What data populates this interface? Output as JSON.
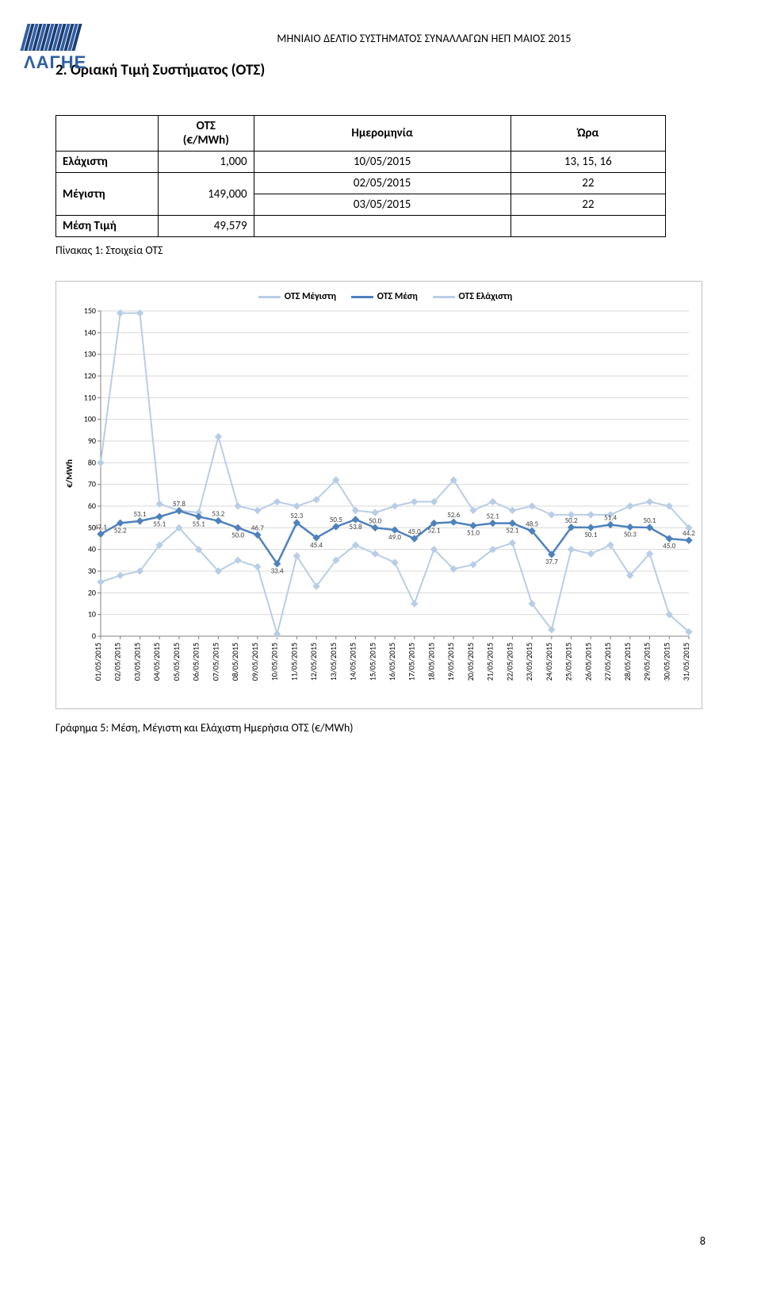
{
  "logo_text": "ΛΑΓΗΕ",
  "doc_header": "ΜΗΝΙΑΙΟ ΔΕΛΤΙΟ ΣΥΣΤΗΜΑΤΟΣ ΣΥΝΑΛΛΑΓΩΝ ΗΕΠ ΜΑΙΟΣ 2015",
  "section_title": "2.  Οριακή Τιμή Συστήματος (ΟΤΣ)",
  "page_number": "8",
  "table": {
    "headers": {
      "c1": "",
      "c2": "ΟΤΣ\n(€/MWh)",
      "c3": "Ημερομηνία",
      "c4": "Ώρα"
    },
    "row_min": {
      "label": "Ελάχιστη",
      "value": "1,000",
      "date": "10/05/2015",
      "hour": "13, 15, 16"
    },
    "row_max1": {
      "label": "Μέγιστη",
      "value": "149,000",
      "date": "02/05/2015",
      "hour": "22"
    },
    "row_max2": {
      "date": "03/05/2015",
      "hour": "22"
    },
    "row_avg": {
      "label": "Μέση Τιμή",
      "value": "49,579",
      "date": "",
      "hour": ""
    },
    "caption": "Πίνακας 1: Στοιχεία ΟΤΣ"
  },
  "chart": {
    "type": "line",
    "title": "",
    "ylabel": "€/MWh",
    "ylim": [
      0,
      150
    ],
    "ytick_step": 10,
    "background_color": "#ffffff",
    "grid_color": "#d9d9d9",
    "axis_color": "#808080",
    "tick_font_size": 10,
    "categories": [
      "01/05/2015",
      "02/05/2015",
      "03/05/2015",
      "04/05/2015",
      "05/05/2015",
      "06/05/2015",
      "07/05/2015",
      "08/05/2015",
      "09/05/2015",
      "10/05/2015",
      "11/05/2015",
      "12/05/2015",
      "13/05/2015",
      "14/05/2015",
      "15/05/2015",
      "16/05/2015",
      "17/05/2015",
      "18/05/2015",
      "19/05/2015",
      "20/05/2015",
      "21/05/2015",
      "22/05/2015",
      "23/05/2015",
      "24/05/2015",
      "25/05/2015",
      "26/05/2015",
      "27/05/2015",
      "28/05/2015",
      "29/05/2015",
      "30/05/2015",
      "31/05/2015"
    ],
    "legend_items": [
      "ΟΤΣ Μέγιστη",
      "ΟΤΣ Μέση",
      "ΟΤΣ Ελάχιστη"
    ],
    "series": {
      "max": {
        "color": "#b9cde5",
        "width": 2,
        "marker": "diamond",
        "data": [
          80,
          149,
          149,
          61,
          58,
          57,
          92,
          60,
          58,
          62,
          60,
          63,
          72,
          58,
          57,
          60,
          62,
          62,
          72,
          58,
          62,
          58,
          60,
          56,
          56,
          56,
          56,
          60,
          62,
          60,
          50
        ]
      },
      "avg": {
        "color": "#4f81bd",
        "width": 2.5,
        "marker": "diamond",
        "data": [
          47.1,
          52.2,
          53.1,
          55.1,
          57.8,
          55.1,
          53.2,
          50.0,
          46.7,
          33.4,
          52.3,
          45.4,
          50.5,
          53.8,
          50.0,
          49.0,
          45.0,
          52.1,
          52.6,
          51.0,
          52.1,
          52.1,
          48.5,
          37.7,
          50.2,
          50.1,
          51.4,
          50.3,
          50.1,
          45.0,
          44.2
        ],
        "labels": [
          47.1,
          52.2,
          53.1,
          55.1,
          57.8,
          55.1,
          53.2,
          50.0,
          46.7,
          33.4,
          52.3,
          45.4,
          50.5,
          53.8,
          50.0,
          49.0,
          45.0,
          52.1,
          52.6,
          51.0,
          52.1,
          52.1,
          48.5,
          37.7,
          50.2,
          50.1,
          51.4,
          50.3,
          50.1,
          45.0,
          44.2
        ]
      },
      "min": {
        "color": "#b9cde5",
        "width": 2,
        "marker": "diamond",
        "data": [
          25,
          28,
          30,
          42,
          50,
          40,
          30,
          35,
          32,
          1,
          37,
          23,
          35,
          42,
          38,
          34,
          15,
          40,
          31,
          33,
          40,
          43,
          15,
          3,
          40,
          38,
          42,
          28,
          38,
          10,
          2
        ]
      }
    },
    "avg_label_font_size": 9,
    "avg_label_color": "#404040",
    "marker_size": 4
  },
  "chart_caption": "Γράφημα 5: Μέση, Μέγιστη και Ελάχιστη Ημερήσια ΟΤΣ (€/MWh)"
}
